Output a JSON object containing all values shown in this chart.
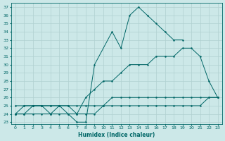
{
  "xlabel": "Humidex (Indice chaleur)",
  "xlim": [
    -0.5,
    23.5
  ],
  "ylim": [
    22.8,
    37.5
  ],
  "yticks": [
    23,
    24,
    25,
    26,
    27,
    28,
    29,
    30,
    31,
    32,
    33,
    34,
    35,
    36,
    37
  ],
  "xticks": [
    0,
    1,
    2,
    3,
    4,
    5,
    6,
    7,
    8,
    9,
    10,
    11,
    12,
    13,
    14,
    15,
    16,
    17,
    18,
    19,
    20,
    21,
    22,
    23
  ],
  "bg_color": "#cce8e8",
  "grid_color": "#b0d0d0",
  "line_color": "#006666",
  "line1_x": [
    0,
    1,
    2,
    3,
    4,
    5,
    6,
    7,
    8,
    9,
    11,
    12,
    13,
    14,
    15,
    16,
    17,
    18,
    19
  ],
  "line1_y": [
    25,
    25,
    25,
    25,
    24,
    25,
    24,
    23,
    23,
    30,
    34,
    32,
    36,
    37,
    36,
    35,
    34,
    33,
    33
  ],
  "line2_x": [
    0,
    1,
    2,
    3,
    4,
    5,
    6,
    7,
    8,
    9,
    10,
    11,
    12,
    13,
    14,
    15,
    16,
    17,
    18,
    19,
    20,
    21,
    22,
    23
  ],
  "line2_y": [
    24,
    24,
    25,
    25,
    25,
    25,
    25,
    24,
    26,
    27,
    28,
    28,
    29,
    30,
    30,
    30,
    31,
    31,
    31,
    32,
    32,
    31,
    28,
    26
  ],
  "line3_x": [
    0,
    1,
    2,
    3,
    4,
    5,
    6,
    7,
    8,
    9,
    10,
    11,
    12,
    13,
    14,
    15,
    16,
    17,
    18,
    19,
    20,
    21,
    22,
    23
  ],
  "line3_y": [
    24,
    24,
    24,
    24,
    24,
    24,
    24,
    24,
    24,
    24,
    25,
    25,
    25,
    25,
    25,
    25,
    25,
    25,
    25,
    25,
    25,
    25,
    26,
    26
  ],
  "line4_x": [
    0,
    1,
    2,
    3,
    4,
    5,
    6,
    7,
    8,
    9,
    10,
    11,
    12,
    13,
    14,
    15,
    16,
    17,
    18,
    19,
    20,
    21,
    22,
    23
  ],
  "line4_y": [
    24,
    25,
    25,
    25,
    25,
    25,
    25,
    25,
    25,
    25,
    25,
    26,
    26,
    26,
    26,
    26,
    26,
    26,
    26,
    26,
    26,
    26,
    26,
    26
  ]
}
